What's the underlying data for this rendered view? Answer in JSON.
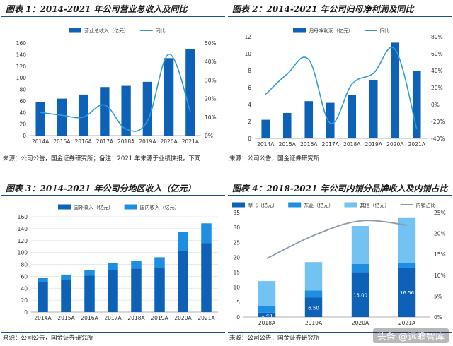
{
  "colors": {
    "bar": "#0d62b8",
    "line": "#2f9bd9",
    "stack_dark": "#0d62b8",
    "stack_mid": "#1e8fe0",
    "stack_light": "#72c3f2",
    "line_gray": "#8a9aaa"
  },
  "panels": [
    {
      "title": "图表 1：2014-2021 年公司营业总收入及同比",
      "source": "来源：公司公告，国金证券研究所；备注：2021 年来源于业绩快报，下同",
      "chart_data": {
        "type": "bar",
        "categories": [
          "2014A",
          "2015A",
          "2016A",
          "2017A",
          "2018A",
          "2019A",
          "2020A",
          "2021A"
        ],
        "series": [
          {
            "name": "营业总收入（亿元）",
            "type": "bar",
            "axis": "left",
            "values": [
              58,
              64,
              71,
              84,
              86,
              93,
              134,
              150
            ]
          },
          {
            "name": "同比",
            "type": "line",
            "axis": "right",
            "values": [
              12.5,
              11,
              10,
              16.5,
              3.5,
              8,
              44,
              13
            ]
          }
        ],
        "left_axis": {
          "min": 0,
          "max": 160,
          "step": 20,
          "ticks": [
            "0",
            "20",
            "40",
            "60",
            "80",
            "100",
            "120",
            "140",
            "160"
          ]
        },
        "right_axis": {
          "min": 0,
          "max": 50,
          "step": 10,
          "ticks": [
            "0%",
            "10%",
            "20%",
            "30%",
            "40%",
            "50%"
          ]
        },
        "legend": "top"
      }
    },
    {
      "title": "图表 2：2014-2021 年公司归母净利润及同比",
      "source": "来源：公司公告，国金证券研究所",
      "chart_data": {
        "type": "bar",
        "categories": [
          "2014A",
          "2015A",
          "2016A",
          "2017A",
          "2018A",
          "2019A",
          "2020A",
          "2021A"
        ],
        "series": [
          {
            "name": "归母净利润（亿元）",
            "type": "bar",
            "axis": "left",
            "values": [
              2.2,
              3.0,
              4.4,
              4.2,
              5.1,
              6.9,
              11.3,
              8.0
            ]
          },
          {
            "name": "同比",
            "type": "line",
            "axis": "right",
            "values": [
              12,
              36,
              53,
              -22,
              24,
              37,
              65,
              -29
            ]
          }
        ],
        "left_axis": {
          "min": 0,
          "max": 12,
          "step": 2,
          "ticks": [
            "0",
            "2",
            "4",
            "6",
            "8",
            "10",
            "12"
          ]
        },
        "right_axis": {
          "min": -40,
          "max": 80,
          "step": 20,
          "ticks": [
            "-40%",
            "-20%",
            "0%",
            "20%",
            "40%",
            "60%",
            "80%"
          ]
        },
        "legend": "top"
      }
    },
    {
      "title": "图表 3：2014-2021 年公司分地区收入（亿元）",
      "source": "来源：公司公告，国金证券研究所",
      "chart_data": {
        "type": "bar",
        "stacked": true,
        "categories": [
          "2014A",
          "2015A",
          "2016A",
          "2017A",
          "2018A",
          "2019A",
          "2020A",
          "2021A"
        ],
        "series": [
          {
            "name": "国外收入（亿元）",
            "values": [
              50,
              55,
              61,
              71,
              73,
              74,
              102,
              116
            ]
          },
          {
            "name": "国内收入（亿元）",
            "values": [
              7,
              8,
              9,
              12,
              13,
              18,
              32,
              33
            ]
          }
        ],
        "left_axis": {
          "min": 0,
          "max": 160,
          "step": 20,
          "ticks": [
            "0",
            "20",
            "40",
            "60",
            "80",
            "100",
            "120",
            "140",
            "160"
          ]
        },
        "legend": "top-left"
      }
    },
    {
      "title": "图表 4：2018-2021 年公司内销分品牌收入及内销占比",
      "source": "来源：公司公告，国金证券研究所",
      "chart_data": {
        "type": "bar",
        "stacked": true,
        "categories": [
          "2018A",
          "2019A",
          "2020A",
          "2021A"
        ],
        "series": [
          {
            "name": "摩飞（亿元）",
            "type": "bar",
            "axis": "left",
            "values": [
              1.44,
              6.5,
              15.0,
              16.56
            ],
            "labels": [
              "1.44",
              "6.50",
              "15.00",
              "16.56"
            ]
          },
          {
            "name": "东菱（亿元）",
            "type": "bar",
            "axis": "left",
            "values": [
              2.3,
              2.4,
              2.8,
              1.6
            ]
          },
          {
            "name": "其他（亿元）",
            "type": "bar",
            "axis": "left",
            "values": [
              8.3,
              9.5,
              12.7,
              15.0
            ]
          },
          {
            "name": "内销占比",
            "type": "line",
            "axis": "right",
            "values": [
              14,
              19.5,
              23,
              22
            ]
          }
        ],
        "left_axis": {
          "min": 0,
          "max": 35,
          "step": 5,
          "ticks": [
            "0",
            "5",
            "10",
            "15",
            "20",
            "25",
            "30",
            "35"
          ]
        },
        "right_axis": {
          "min": 0,
          "max": 25,
          "step": 5,
          "ticks": [
            "0%",
            "5%",
            "10%",
            "15%",
            "20%",
            "25%"
          ]
        },
        "legend": "top"
      }
    }
  ],
  "watermark": "头条 @远瞻智库"
}
